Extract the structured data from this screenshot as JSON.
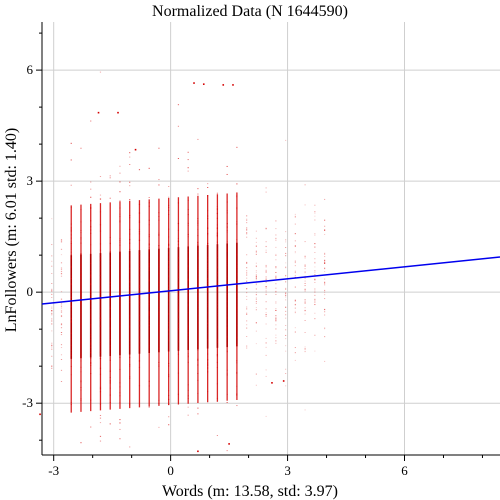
{
  "chart_data": {
    "type": "scatter",
    "title": "Normalized Data (N 1644590)",
    "xlabel": "Words (m: 13.58, std: 3.97)",
    "ylabel": "LnFollowers (m: 6.01 std: 1.40)",
    "xlim": [
      -3.3,
      8.45
    ],
    "ylim": [
      -4.4,
      7.3
    ],
    "x_ticks": [
      -3,
      0,
      3,
      6
    ],
    "x_minor_ticks": [
      -2,
      -1,
      1,
      2,
      4,
      5,
      7,
      8
    ],
    "y_ticks": [
      -3,
      0,
      3,
      6
    ],
    "grid": true,
    "colors": {
      "points": "#d40000",
      "fit_line": "#0000ee",
      "grid": "#cfcfcf"
    },
    "point_columns_x": [
      -3.05,
      -2.8,
      -2.55,
      -2.3,
      -2.05,
      -1.8,
      -1.55,
      -1.3,
      -1.05,
      -0.8,
      -0.55,
      -0.3,
      -0.05,
      0.2,
      0.45,
      0.7,
      0.95,
      1.2,
      1.45,
      1.7,
      1.95,
      2.2,
      2.45,
      2.7,
      2.95,
      3.2,
      3.45,
      3.7,
      3.95
    ],
    "dense_columns_x": [
      -2.55,
      -2.3,
      -2.05,
      -1.8,
      -1.55,
      -1.3,
      -1.05,
      -0.8,
      -0.55,
      -0.3,
      -0.05,
      0.2,
      0.45,
      0.7,
      0.95,
      1.2,
      1.45,
      1.7
    ],
    "outliers": [
      {
        "x": 0.6,
        "y": 5.65
      },
      {
        "x": 0.85,
        "y": 5.62
      },
      {
        "x": 1.35,
        "y": 5.6
      },
      {
        "x": 1.6,
        "y": 5.6
      },
      {
        "x": -1.85,
        "y": 4.85
      },
      {
        "x": -1.35,
        "y": 4.85
      },
      {
        "x": -0.9,
        "y": 3.85
      },
      {
        "x": -3.35,
        "y": -3.3
      },
      {
        "x": 2.6,
        "y": -2.45
      },
      {
        "x": 2.9,
        "y": -2.4
      },
      {
        "x": 0.7,
        "y": -4.3
      },
      {
        "x": 1.5,
        "y": -4.1
      }
    ],
    "fit_line": {
      "x": [
        -3.3,
        8.45
      ],
      "y": [
        -0.32,
        0.95
      ]
    }
  }
}
